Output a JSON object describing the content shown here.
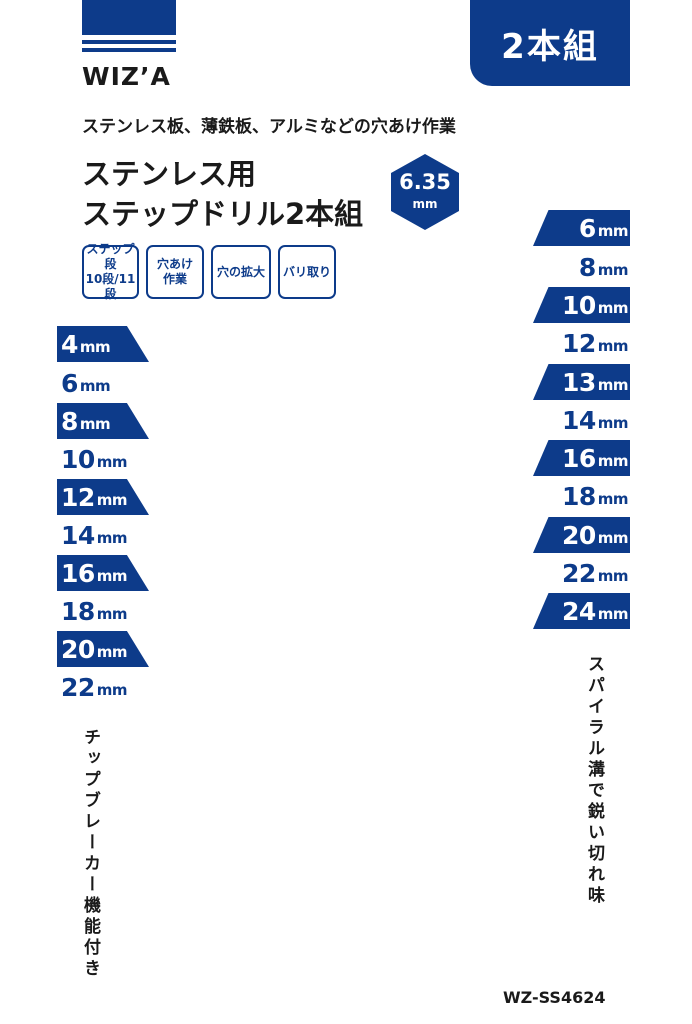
{
  "brand": {
    "logo_text": "WIZ’A"
  },
  "badge": {
    "label": "2本組"
  },
  "subtitle": "ステンレス板、薄鉄板、アルミなどの穴あけ作業",
  "title": {
    "line1": "ステンレス用",
    "line2": "ステップドリル2本組"
  },
  "shank": {
    "value": "6.35",
    "unit": "mm"
  },
  "features": [
    {
      "line1": "ステップ段",
      "line2": "10段/11段"
    },
    {
      "line1": "穴あけ",
      "line2": "作業"
    },
    {
      "line1": "穴の拡大",
      "line2": ""
    },
    {
      "line1": "バリ取り",
      "line2": ""
    }
  ],
  "unit": "mm",
  "left_sizes": [
    "4",
    "6",
    "8",
    "10",
    "12",
    "14",
    "16",
    "18",
    "20",
    "22"
  ],
  "right_sizes": [
    "6",
    "8",
    "10",
    "12",
    "13",
    "14",
    "16",
    "18",
    "20",
    "22",
    "24"
  ],
  "left_feature_text": "チップブレーカー機能付き",
  "right_feature_text": "スパイラル溝で鋭い切れ味",
  "model_code": "WZ-SS4624",
  "colors": {
    "navy": "#0d3b8a",
    "text": "#1a1a1a",
    "background": "#ffffff"
  }
}
